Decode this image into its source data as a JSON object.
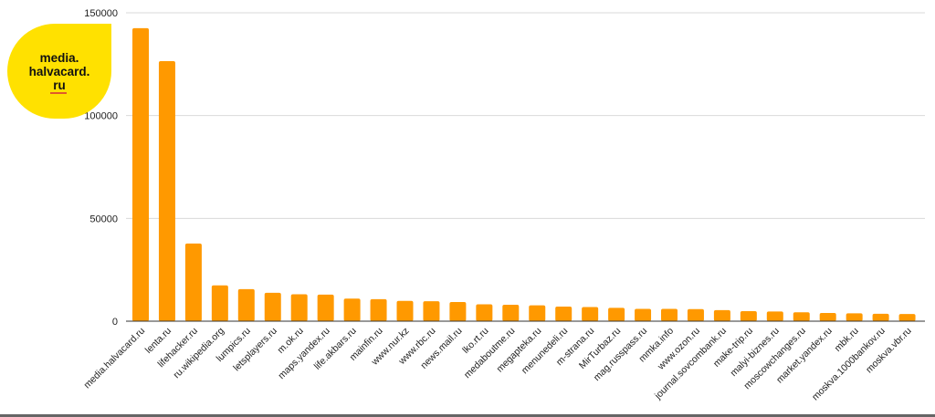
{
  "logo": {
    "lines": [
      "media.",
      "halvacard.",
      "ru"
    ],
    "color": "#FFE100"
  },
  "chart_data": {
    "type": "bar",
    "title": "",
    "xlabel": "",
    "ylabel": "",
    "ylim": [
      0,
      150000
    ],
    "yticks": [
      0,
      50000,
      100000,
      150000
    ],
    "ytick_labels": [
      "0",
      "50000",
      "100000",
      "150000"
    ],
    "bar_color": "#FF9900",
    "grid": true,
    "categories": [
      "media.halvacard.ru",
      "lenta.ru",
      "lifehacker.ru",
      "ru.wikipedia.org",
      "lumpics.ru",
      "letsplayers.ru",
      "m.ok.ru",
      "maps.yandex.ru",
      "life.akbars.ru",
      "mainfin.ru",
      "www.nur.kz",
      "www.rbc.ru",
      "news.mail.ru",
      "lko.rt.ru",
      "medaboutme.ru",
      "megapteka.ru",
      "menunedeli.ru",
      "m-strana.ru",
      "MirTurbaz.ru",
      "mag.russpass.ru",
      "mmka.info",
      "www.ozon.ru",
      "journal.sovcombank.ru",
      "make-trip.ru",
      "malyi-biznes.ru",
      "moscowchanges.ru",
      "market.yandex.ru",
      "mbk.ru",
      "moskva.1000bankov.ru",
      "moskva.vbr.ru"
    ],
    "values": [
      142500,
      126500,
      37800,
      17400,
      15600,
      13800,
      13100,
      12900,
      11000,
      10700,
      9900,
      9700,
      9300,
      8200,
      8000,
      7700,
      7100,
      6900,
      6500,
      6000,
      6000,
      5900,
      5400,
      4900,
      4700,
      4300,
      4000,
      3800,
      3600,
      3500
    ]
  }
}
